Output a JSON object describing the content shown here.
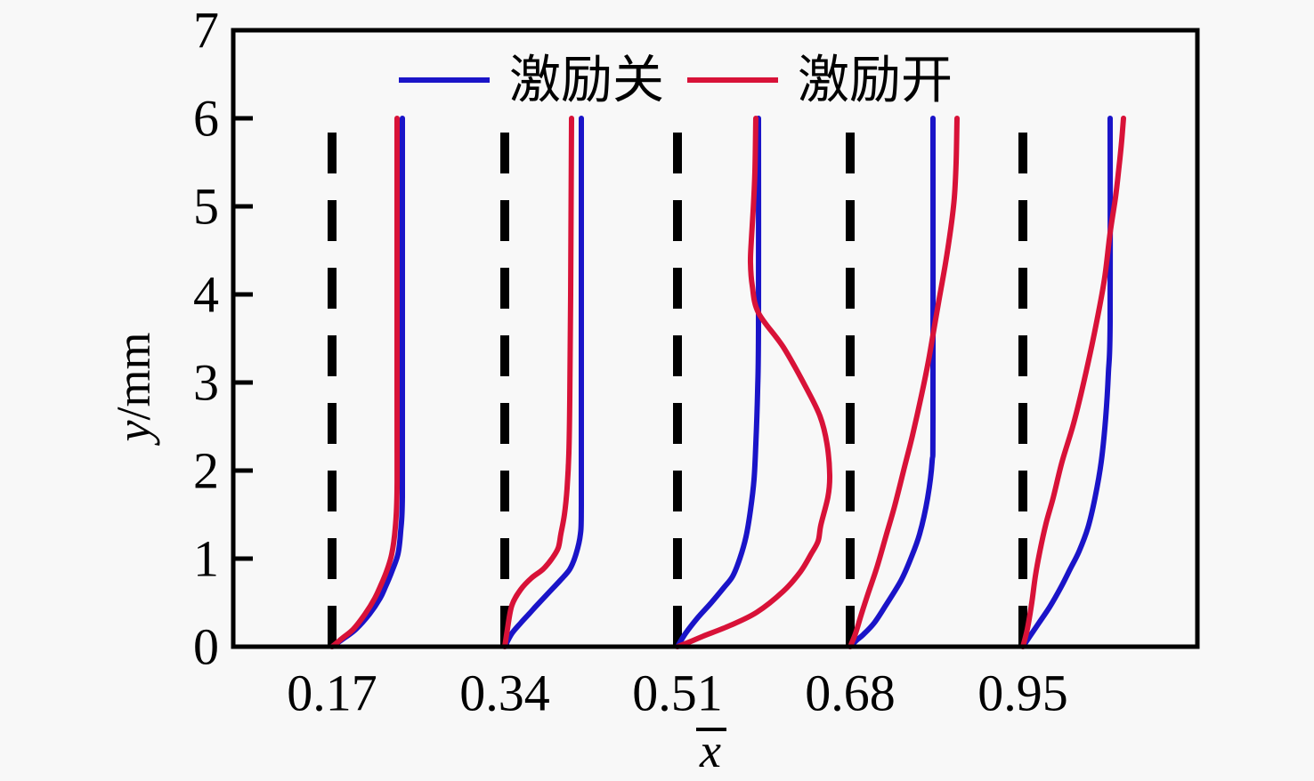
{
  "figure": {
    "background": "#f8f8f8",
    "frame_color": "#000000",
    "legend": {
      "entries": [
        {
          "label": "激励关",
          "color": "#1a14c8"
        },
        {
          "label": "激励开",
          "color": "#d81238"
        }
      ]
    },
    "axes": {
      "ylabel_var": "y",
      "ylabel_unit": "/mm",
      "xlabel_char": "x",
      "y_tick_labels": [
        "0",
        "1",
        "2",
        "3",
        "4",
        "5",
        "6",
        "7"
      ]
    }
  },
  "chart_data": {
    "type": "line",
    "title": "",
    "xlabel": "x̄",
    "ylabel": "y/mm",
    "ylim": [
      0,
      7
    ],
    "y_ticks": [
      0,
      1,
      2,
      3,
      4,
      5,
      6,
      7
    ],
    "grid": false,
    "legend_position": "top-center",
    "x_stations": [
      0.17,
      0.34,
      0.51,
      0.68,
      0.95
    ],
    "station_labels": [
      "0.17",
      "0.34",
      "0.51",
      "0.68",
      "0.95"
    ],
    "station_marker": {
      "style": "dashed",
      "color": "#000000",
      "y_range_mm": [
        0,
        6
      ]
    },
    "profile_note": "horizontal offset from each dashed station line is proportional to mean streamwise velocity; offsets in plot px units, height in mm",
    "series": [
      {
        "name": "激励关",
        "color": "#1a14c8",
        "profiles": [
          [
            [
              0,
              0
            ],
            [
              14,
              0.1
            ],
            [
              27,
              0.2
            ],
            [
              42,
              0.37
            ],
            [
              54,
              0.55
            ],
            [
              60,
              0.68
            ],
            [
              67,
              0.85
            ],
            [
              74,
              1.05
            ],
            [
              77,
              1.3
            ],
            [
              79,
              1.7
            ],
            [
              79,
              3
            ],
            [
              79,
              6
            ]
          ],
          [
            [
              0,
              0
            ],
            [
              8,
              0.15
            ],
            [
              18,
              0.27
            ],
            [
              28,
              0.38
            ],
            [
              36,
              0.47
            ],
            [
              50,
              0.62
            ],
            [
              62,
              0.75
            ],
            [
              73,
              0.88
            ],
            [
              80,
              1.05
            ],
            [
              85,
              1.28
            ],
            [
              86,
              1.6
            ],
            [
              86,
              3
            ],
            [
              86,
              6
            ]
          ],
          [
            [
              0,
              0
            ],
            [
              9,
              0.15
            ],
            [
              22,
              0.32
            ],
            [
              38,
              0.5
            ],
            [
              52,
              0.67
            ],
            [
              62,
              0.8
            ],
            [
              70,
              1.0
            ],
            [
              77,
              1.25
            ],
            [
              82,
              1.55
            ],
            [
              86,
              1.9
            ],
            [
              88,
              2.3
            ],
            [
              90,
              2.9
            ],
            [
              91,
              3.6
            ],
            [
              91,
              6
            ]
          ],
          [
            [
              0,
              0
            ],
            [
              8,
              0.08
            ],
            [
              15,
              0.14
            ],
            [
              27,
              0.27
            ],
            [
              40,
              0.47
            ],
            [
              57,
              0.75
            ],
            [
              68,
              1.0
            ],
            [
              78,
              1.28
            ],
            [
              87,
              1.69
            ],
            [
              92,
              2.1
            ],
            [
              93,
              2.6
            ],
            [
              93,
              6
            ]
          ],
          [
            [
              0,
              0
            ],
            [
              8,
              0.12
            ],
            [
              18,
              0.27
            ],
            [
              30,
              0.45
            ],
            [
              43,
              0.68
            ],
            [
              53,
              0.88
            ],
            [
              63,
              1.08
            ],
            [
              73,
              1.35
            ],
            [
              81,
              1.69
            ],
            [
              88,
              2.1
            ],
            [
              93,
              2.6
            ],
            [
              96,
              3.1
            ],
            [
              98,
              3.7
            ],
            [
              98,
              6
            ]
          ]
        ]
      },
      {
        "name": "激励开",
        "color": "#d81238",
        "profiles": [
          [
            [
              0,
              0
            ],
            [
              12,
              0.1
            ],
            [
              24,
              0.2
            ],
            [
              37,
              0.37
            ],
            [
              48,
              0.55
            ],
            [
              54,
              0.68
            ],
            [
              61,
              0.85
            ],
            [
              67,
              1.05
            ],
            [
              71,
              1.35
            ],
            [
              73,
              1.8
            ],
            [
              73,
              3
            ],
            [
              73,
              6
            ]
          ],
          [
            [
              0,
              0
            ],
            [
              3,
              0.2
            ],
            [
              8,
              0.47
            ],
            [
              18,
              0.65
            ],
            [
              30,
              0.78
            ],
            [
              43,
              0.88
            ],
            [
              53,
              1.0
            ],
            [
              60,
              1.12
            ],
            [
              63,
              1.28
            ],
            [
              67,
              1.5
            ],
            [
              70,
              1.8
            ],
            [
              72,
              2.2
            ],
            [
              73,
              2.8
            ],
            [
              74,
              4
            ],
            [
              75,
              6
            ]
          ],
          [
            [
              0,
              0
            ],
            [
              15,
              0.06
            ],
            [
              29,
              0.12
            ],
            [
              59,
              0.24
            ],
            [
              89,
              0.39
            ],
            [
              119,
              0.63
            ],
            [
              138,
              0.85
            ],
            [
              150,
              1.05
            ],
            [
              158,
              1.2
            ],
            [
              161,
              1.38
            ],
            [
              169,
              1.7
            ],
            [
              171,
              1.95
            ],
            [
              168,
              2.3
            ],
            [
              160,
              2.62
            ],
            [
              144,
              2.95
            ],
            [
              119,
              3.4
            ],
            [
              91,
              3.79
            ],
            [
              84,
              4.1
            ],
            [
              82,
              4.36
            ],
            [
              83,
              4.62
            ],
            [
              85,
              4.95
            ],
            [
              87,
              5.4
            ],
            [
              88,
              6
            ]
          ],
          [
            [
              0,
              0
            ],
            [
              6,
              0.15
            ],
            [
              12,
              0.35
            ],
            [
              20,
              0.6
            ],
            [
              30,
              0.9
            ],
            [
              40,
              1.25
            ],
            [
              50,
              1.6
            ],
            [
              60,
              2.0
            ],
            [
              70,
              2.4
            ],
            [
              80,
              2.85
            ],
            [
              88,
              3.25
            ],
            [
              94,
              3.6
            ],
            [
              100,
              3.95
            ],
            [
              107,
              4.35
            ],
            [
              113,
              4.75
            ],
            [
              117,
              5.1
            ],
            [
              119,
              5.5
            ],
            [
              120,
              6
            ]
          ],
          [
            [
              0,
              0
            ],
            [
              5,
              0.2
            ],
            [
              10,
              0.5
            ],
            [
              14,
              0.8
            ],
            [
              19,
              1.08
            ],
            [
              26,
              1.4
            ],
            [
              34,
              1.69
            ],
            [
              44,
              2.1
            ],
            [
              56,
              2.5
            ],
            [
              66,
              2.9
            ],
            [
              76,
              3.35
            ],
            [
              85,
              3.8
            ],
            [
              92,
              4.2
            ],
            [
              98,
              4.7
            ],
            [
              104,
              5.1
            ],
            [
              108,
              5.45
            ],
            [
              111,
              5.75
            ],
            [
              113,
              6
            ]
          ]
        ]
      }
    ]
  }
}
